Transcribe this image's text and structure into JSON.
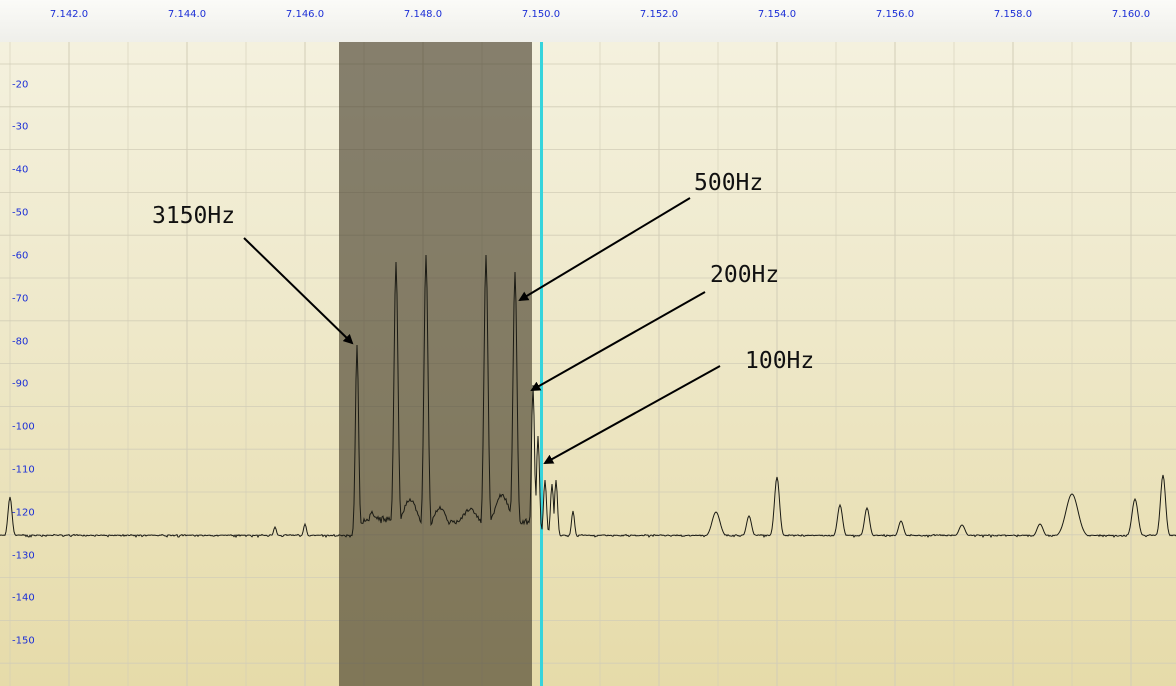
{
  "frequency_axis": {
    "labels": [
      "7.142.0",
      "7.144.0",
      "7.146.0",
      "7.148.0",
      "7.150.0",
      "7.152.0",
      "7.154.0",
      "7.156.0",
      "7.158.0",
      "7.160.0"
    ]
  },
  "level_axis": {
    "labels": [
      "-20",
      "-30",
      "-40",
      "-50",
      "-60",
      "-70",
      "-80",
      "-90",
      "-100",
      "-110",
      "-120",
      "-130",
      "-140",
      "-150"
    ]
  },
  "annotations": {
    "a3150": "3150Hz",
    "a500": "500Hz",
    "a200": "200Hz",
    "a100": "100Hz"
  },
  "colors": {
    "axis_label": "#1c2fd6",
    "trace": "#1a1a14",
    "passband": "#3c3422",
    "tune_line": "#36d4dc",
    "grid": "#d2cdb7"
  }
}
